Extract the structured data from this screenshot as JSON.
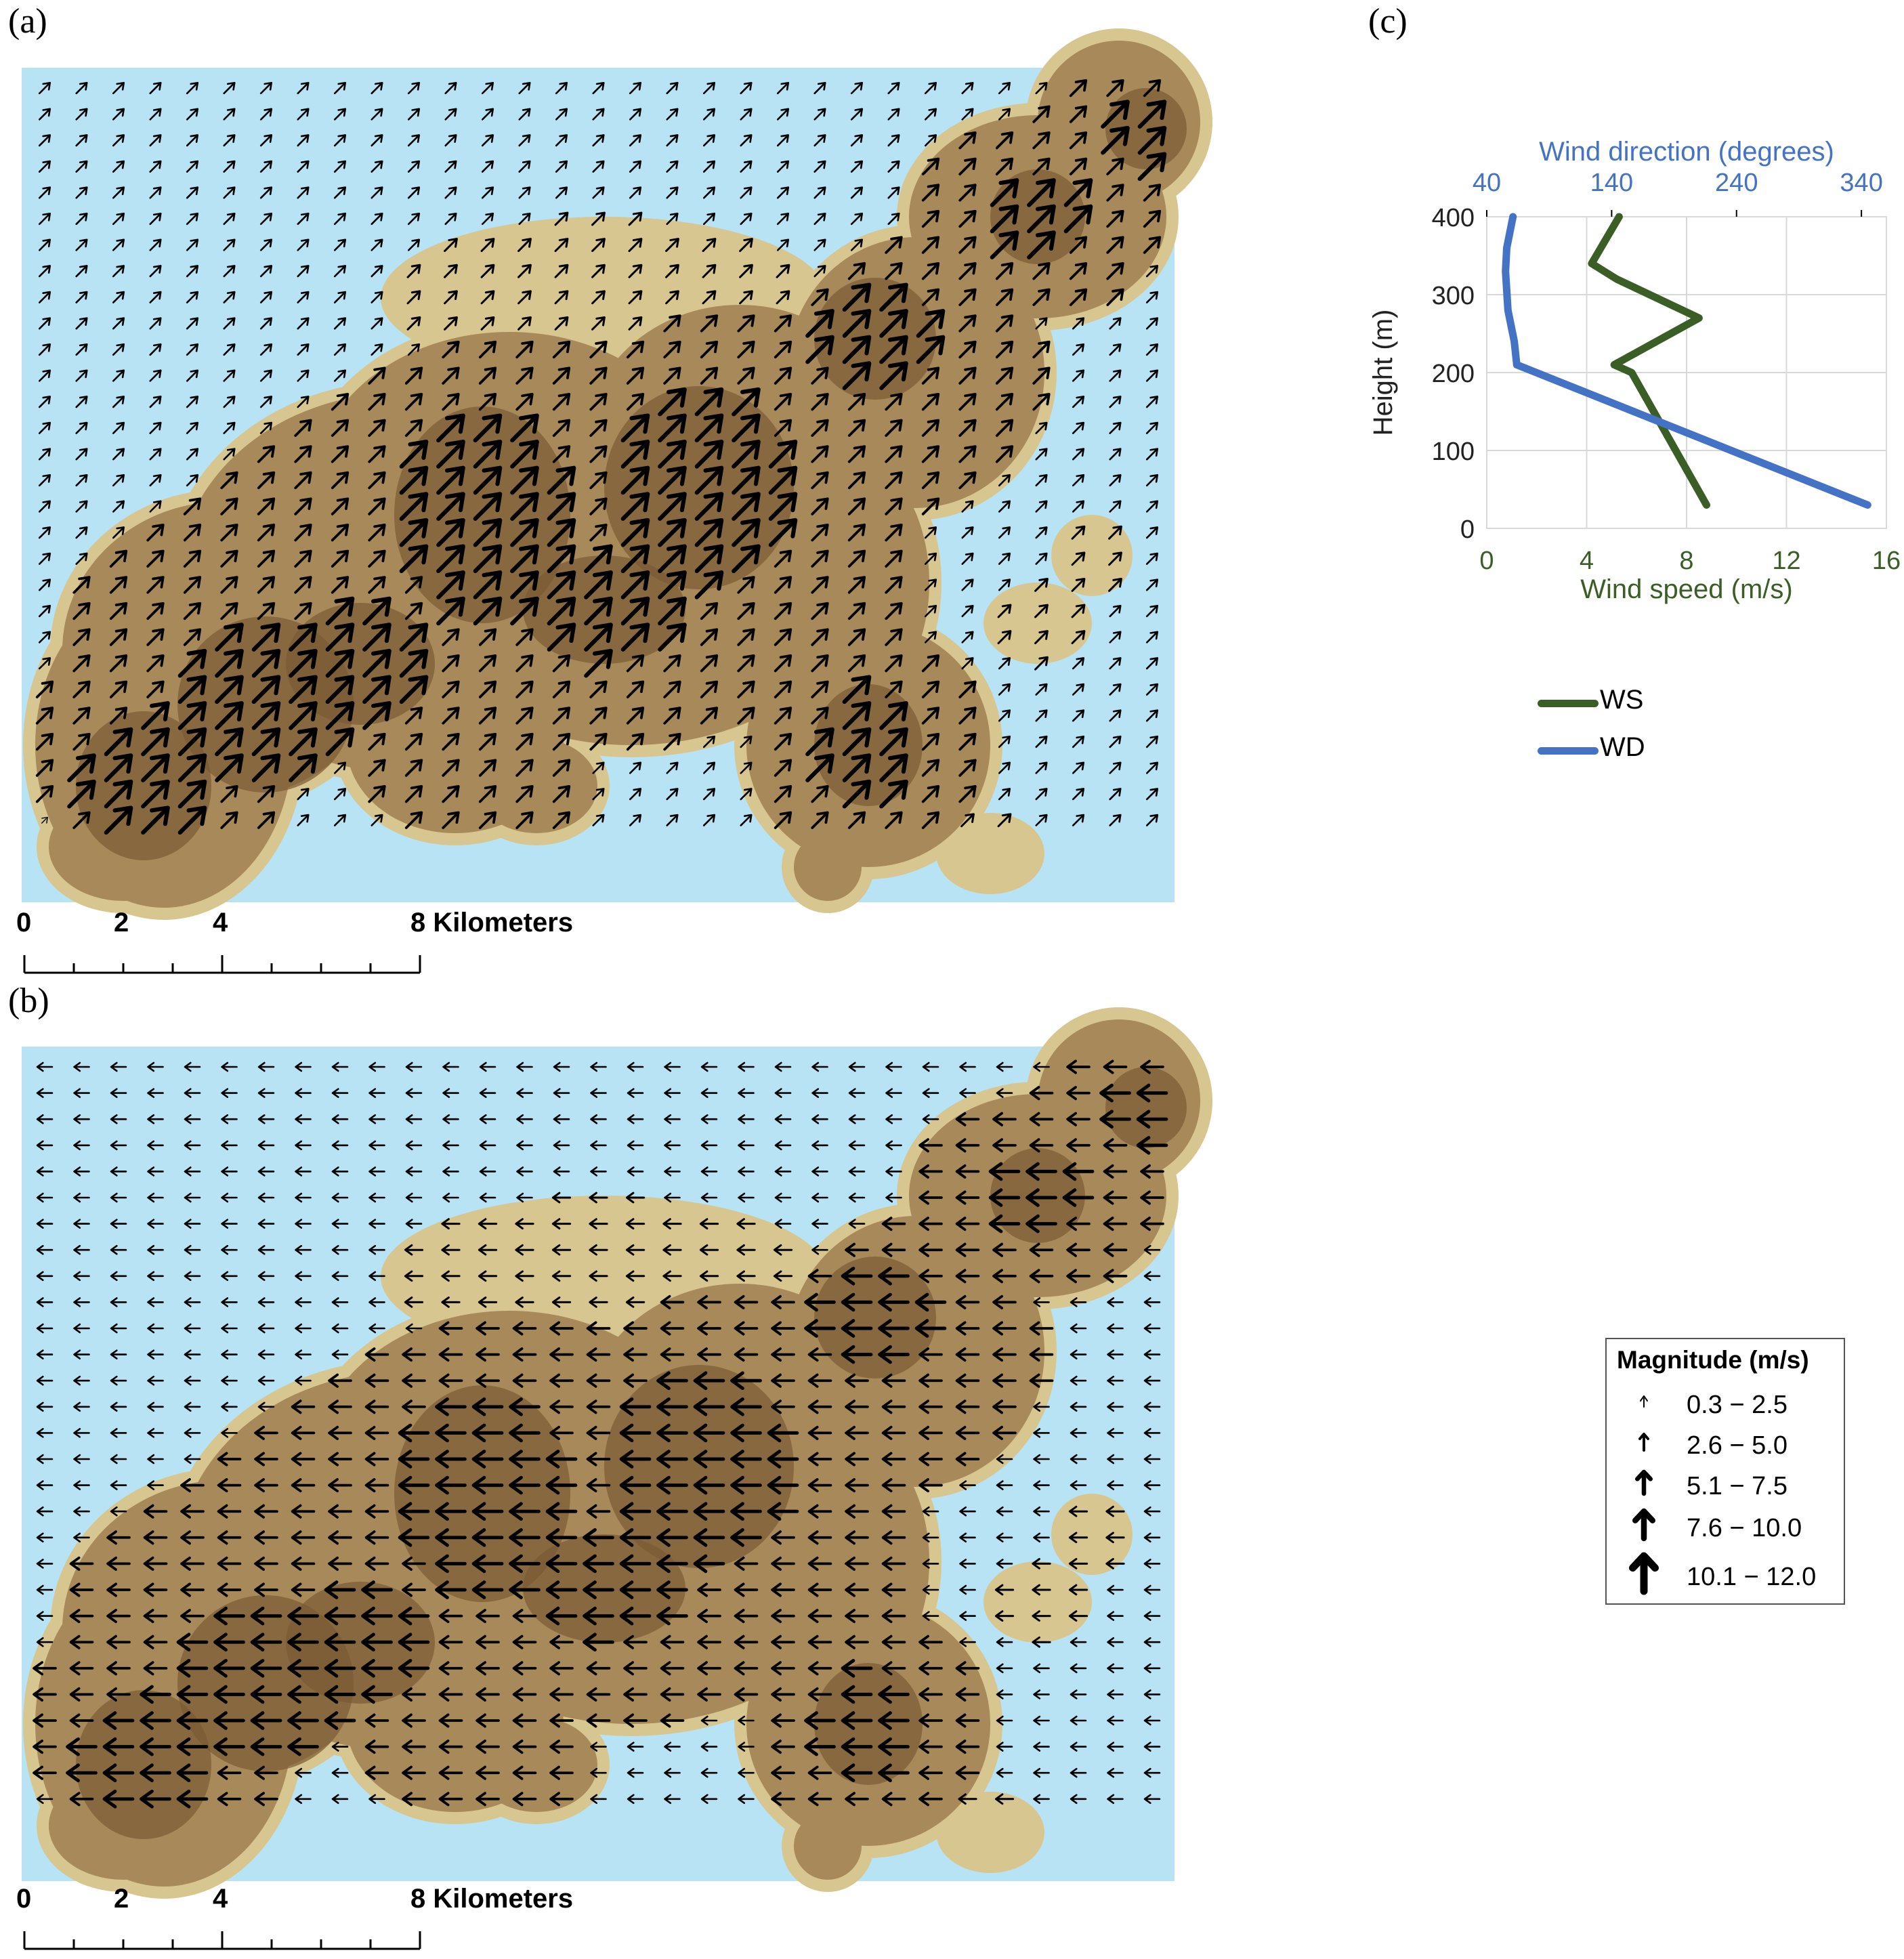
{
  "panels": {
    "a": {
      "label": "(a)"
    },
    "b": {
      "label": "(b)"
    },
    "c": {
      "label": "(c)"
    }
  },
  "scalebar": {
    "labels": [
      "0",
      "2",
      "4",
      "8 Kilometers"
    ]
  },
  "colors": {
    "sea": "#b7e3f5",
    "land_low": "#d8c690",
    "land_mid": "#a8895a",
    "land_high": "#7a5a33",
    "arrow": "#000000",
    "ws": "#3b5e26",
    "wd": "#4472c4"
  },
  "wind_maps": {
    "a": {
      "direction": "north-east",
      "calm": "sea areas",
      "strongest": "over the highest terrain"
    },
    "b": {
      "direction": "west",
      "strongest": "over the highest terrain"
    }
  },
  "chart_data": {
    "type": "line",
    "xlabel_bottom": "Wind speed (m/s)",
    "xlabel_top": "Wind direction (degrees)",
    "ylabel": "Height (m)",
    "x_bottom_ticks": [
      "0",
      "4",
      "8",
      "12",
      "16"
    ],
    "x_top_ticks": [
      "40",
      "140",
      "240",
      "340"
    ],
    "y_ticks": [
      "0",
      "100",
      "200",
      "300",
      "400"
    ],
    "x_bottom_range": [
      0,
      16
    ],
    "x_top_range": [
      40,
      360
    ],
    "y_range": [
      0,
      400
    ],
    "grid": true,
    "series": [
      {
        "name": "WS",
        "axis": "bottom",
        "color": "#3b5e26",
        "points": [
          [
            8.8,
            30
          ],
          [
            5.8,
            200
          ],
          [
            5.1,
            210
          ],
          [
            8.5,
            270
          ],
          [
            5.2,
            320
          ],
          [
            4.2,
            340
          ],
          [
            5.3,
            400
          ]
        ]
      },
      {
        "name": "WD",
        "axis": "top",
        "color": "#4472c4",
        "points": [
          [
            345,
            30
          ],
          [
            64,
            210
          ],
          [
            62,
            240
          ],
          [
            57,
            280
          ],
          [
            55,
            330
          ],
          [
            56,
            360
          ],
          [
            61,
            400
          ]
        ]
      }
    ]
  },
  "legend": {
    "ws": "WS",
    "wd": "WD"
  },
  "magnitude_legend": {
    "title": "Magnitude (m/s)",
    "classes": [
      {
        "label": "0.3 − 2.5",
        "level": 1
      },
      {
        "label": "2.6 − 5.0",
        "level": 2
      },
      {
        "label": "5.1 − 7.5",
        "level": 3
      },
      {
        "label": "7.6 − 10.0",
        "level": 4
      },
      {
        "label": "10.1 − 12.0",
        "level": 5
      }
    ]
  }
}
